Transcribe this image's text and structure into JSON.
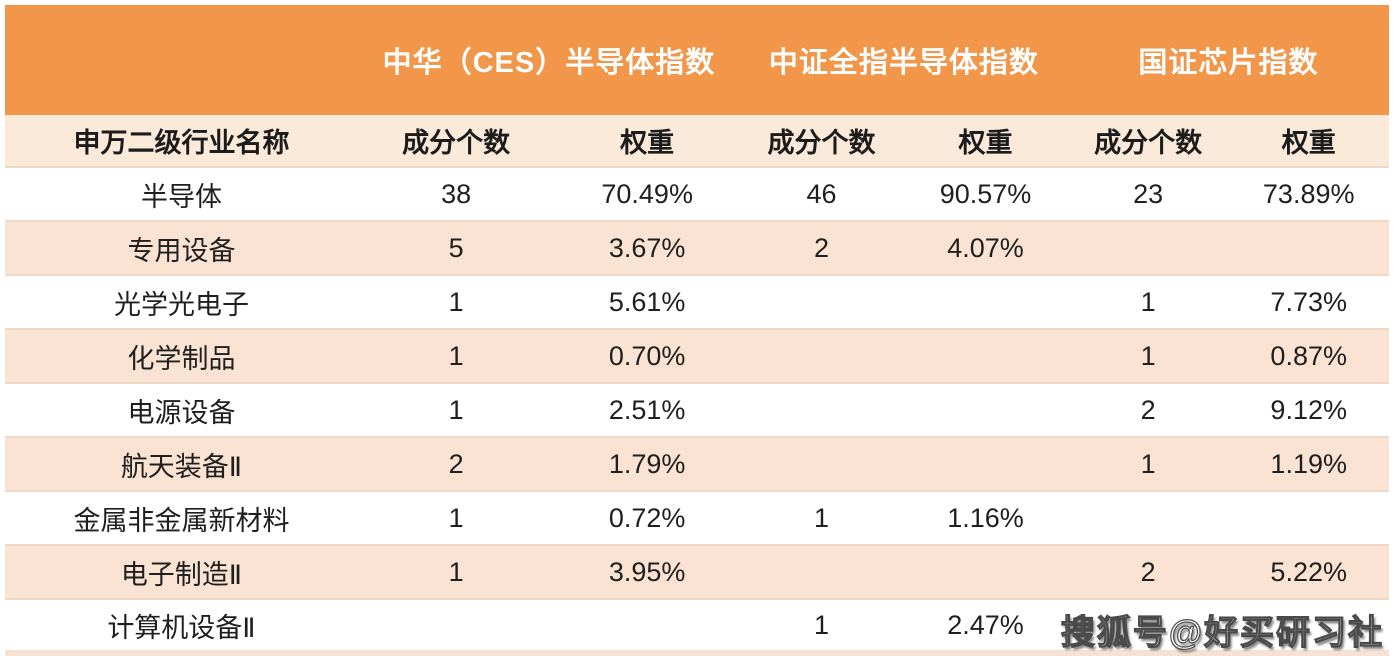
{
  "table": {
    "index_headers": [
      {
        "label": "中华（CES）半导体指数"
      },
      {
        "label": "中证全指半导体指数"
      },
      {
        "label": "国证芯片指数"
      }
    ],
    "sub_headers": [
      "申万二级行业名称",
      "成分个数",
      "权重",
      "成分个数",
      "权重",
      "成分个数",
      "权重"
    ],
    "rows": [
      {
        "industry": "半导体",
        "ces_count": "38",
        "ces_weight": "70.49%",
        "csi_count": "46",
        "csi_weight": "90.57%",
        "cni_count": "23",
        "cni_weight": "73.89%"
      },
      {
        "industry": "专用设备",
        "ces_count": "5",
        "ces_weight": "3.67%",
        "csi_count": "2",
        "csi_weight": "4.07%",
        "cni_count": "",
        "cni_weight": ""
      },
      {
        "industry": "光学光电子",
        "ces_count": "1",
        "ces_weight": "5.61%",
        "csi_count": "",
        "csi_weight": "",
        "cni_count": "1",
        "cni_weight": "7.73%"
      },
      {
        "industry": "化学制品",
        "ces_count": "1",
        "ces_weight": "0.70%",
        "csi_count": "",
        "csi_weight": "",
        "cni_count": "1",
        "cni_weight": "0.87%"
      },
      {
        "industry": "电源设备",
        "ces_count": "1",
        "ces_weight": "2.51%",
        "csi_count": "",
        "csi_weight": "",
        "cni_count": "2",
        "cni_weight": "9.12%"
      },
      {
        "industry": "航天装备Ⅱ",
        "ces_count": "2",
        "ces_weight": "1.79%",
        "csi_count": "",
        "csi_weight": "",
        "cni_count": "1",
        "cni_weight": "1.19%"
      },
      {
        "industry": "金属非金属新材料",
        "ces_count": "1",
        "ces_weight": "0.72%",
        "csi_count": "1",
        "csi_weight": "1.16%",
        "cni_count": "",
        "cni_weight": ""
      },
      {
        "industry": "电子制造Ⅱ",
        "ces_count": "1",
        "ces_weight": "3.95%",
        "csi_count": "",
        "csi_weight": "",
        "cni_count": "2",
        "cni_weight": "5.22%"
      },
      {
        "industry": "计算机设备Ⅱ",
        "ces_count": "",
        "ces_weight": "",
        "csi_count": "1",
        "csi_weight": "2.47%",
        "cni_count": "",
        "cni_weight": ""
      }
    ]
  },
  "watermark": "搜狐号@好买研习社",
  "colors": {
    "header_orange": "#f2964a",
    "subheader_peach": "#fbe9da",
    "row_peach": "#fae3d2",
    "row_white": "#ffffff",
    "divider": "#ecd8c4",
    "header_text": "#ffffff",
    "body_text": "#1f1f1f"
  },
  "chart_data": {
    "type": "table",
    "title": "",
    "column_groups": [
      "中华（CES）半导体指数",
      "中证全指半导体指数",
      "国证芯片指数"
    ],
    "columns": [
      "申万二级行业名称",
      "成分个数(CES)",
      "权重(CES)",
      "成分个数(中证全指)",
      "权重(中证全指)",
      "成分个数(国证芯片)",
      "权重(国证芯片)"
    ],
    "rows": [
      [
        "半导体",
        38,
        "70.49%",
        46,
        "90.57%",
        23,
        "73.89%"
      ],
      [
        "专用设备",
        5,
        "3.67%",
        2,
        "4.07%",
        null,
        null
      ],
      [
        "光学光电子",
        1,
        "5.61%",
        null,
        null,
        1,
        "7.73%"
      ],
      [
        "化学制品",
        1,
        "0.70%",
        null,
        null,
        1,
        "0.87%"
      ],
      [
        "电源设备",
        1,
        "2.51%",
        null,
        null,
        2,
        "9.12%"
      ],
      [
        "航天装备Ⅱ",
        2,
        "1.79%",
        null,
        null,
        1,
        "1.19%"
      ],
      [
        "金属非金属新材料",
        1,
        "0.72%",
        1,
        "1.16%",
        null,
        null
      ],
      [
        "电子制造Ⅱ",
        1,
        "3.95%",
        null,
        null,
        2,
        "5.22%"
      ],
      [
        "计算机设备Ⅱ",
        null,
        null,
        1,
        "2.47%",
        null,
        null
      ]
    ]
  }
}
